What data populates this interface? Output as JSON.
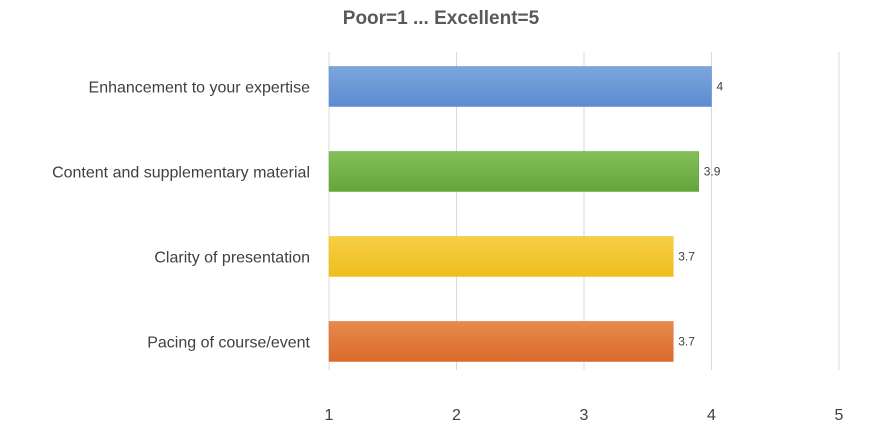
{
  "chart_data": {
    "type": "bar",
    "orientation": "horizontal",
    "title": "Poor=1 ... Excellent=5",
    "xlabel": "",
    "ylabel": "",
    "xlim": [
      1,
      5
    ],
    "ticks": [
      "1",
      "2",
      "3",
      "4",
      "5"
    ],
    "grid": true,
    "legend": "none",
    "categories": [
      "Enhancement to your expertise",
      "Content and supplementary material",
      "Clarity of presentation",
      "Pacing of course/event"
    ],
    "values": [
      4,
      3.9,
      3.7,
      3.7
    ],
    "data_labels": [
      "4",
      "3.9",
      "3.7",
      "3.7"
    ],
    "colors": [
      [
        "#7ea6dc",
        "#5b8bd1"
      ],
      [
        "#86bf5b",
        "#63a53a"
      ],
      [
        "#f6cf45",
        "#efbd1e"
      ],
      [
        "#e88a4f",
        "#d96a2a"
      ]
    ]
  }
}
